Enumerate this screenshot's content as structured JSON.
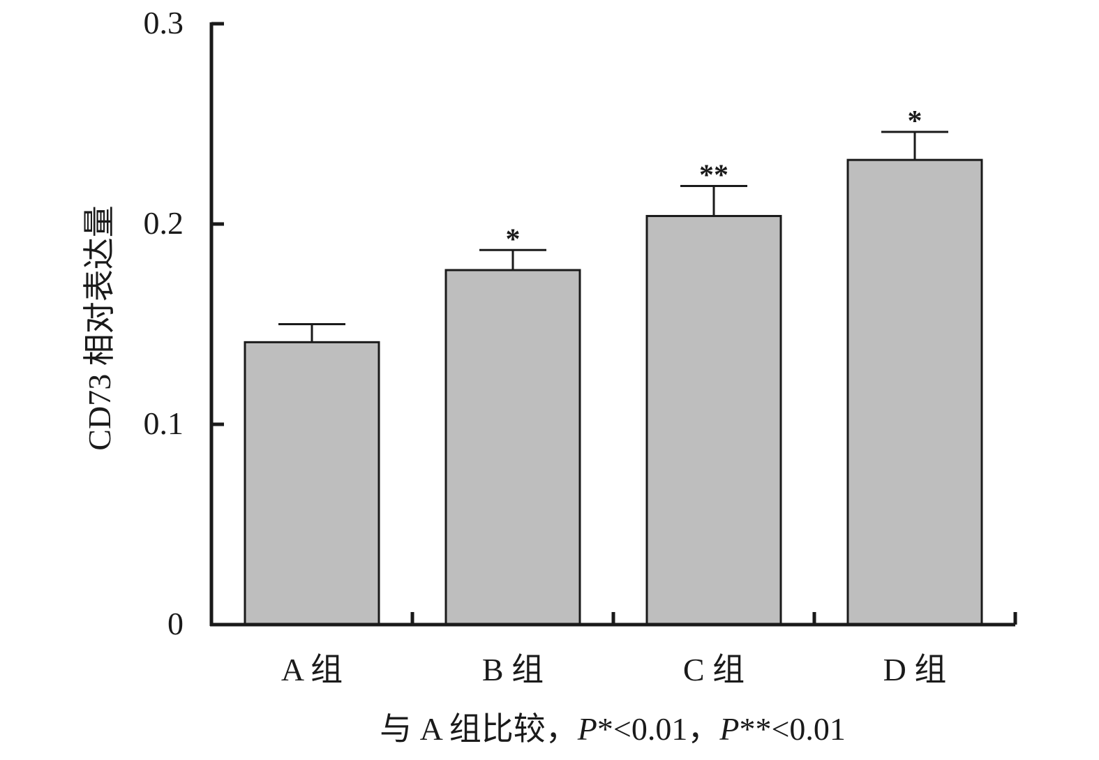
{
  "chart_data": {
    "type": "bar",
    "title": "",
    "xlabel": "",
    "ylabel": "CD73 相对表达量",
    "ylim": [
      0,
      0.3
    ],
    "yticks": [
      "0",
      "0.1",
      "0.2",
      "0.3"
    ],
    "ytick_values": [
      0,
      0.1,
      0.2,
      0.3
    ],
    "categories": [
      "A 组",
      "B 组",
      "C 组",
      "D 组"
    ],
    "values": [
      0.141,
      0.177,
      0.204,
      0.232
    ],
    "errors": [
      0.009,
      0.01,
      0.015,
      0.014
    ],
    "significance": [
      "",
      "*",
      "**",
      "*"
    ],
    "bar_color": "#bebebe",
    "bar_edge_color": "#1a1a1a",
    "axis_color": "#1a1a1a",
    "grid": false,
    "note": {
      "prefix": "与 A 组比较，",
      "p1_italic": "P",
      "p1_rest": "*<0.01，",
      "p2_italic": "P",
      "p2_rest": "**<0.01"
    }
  }
}
